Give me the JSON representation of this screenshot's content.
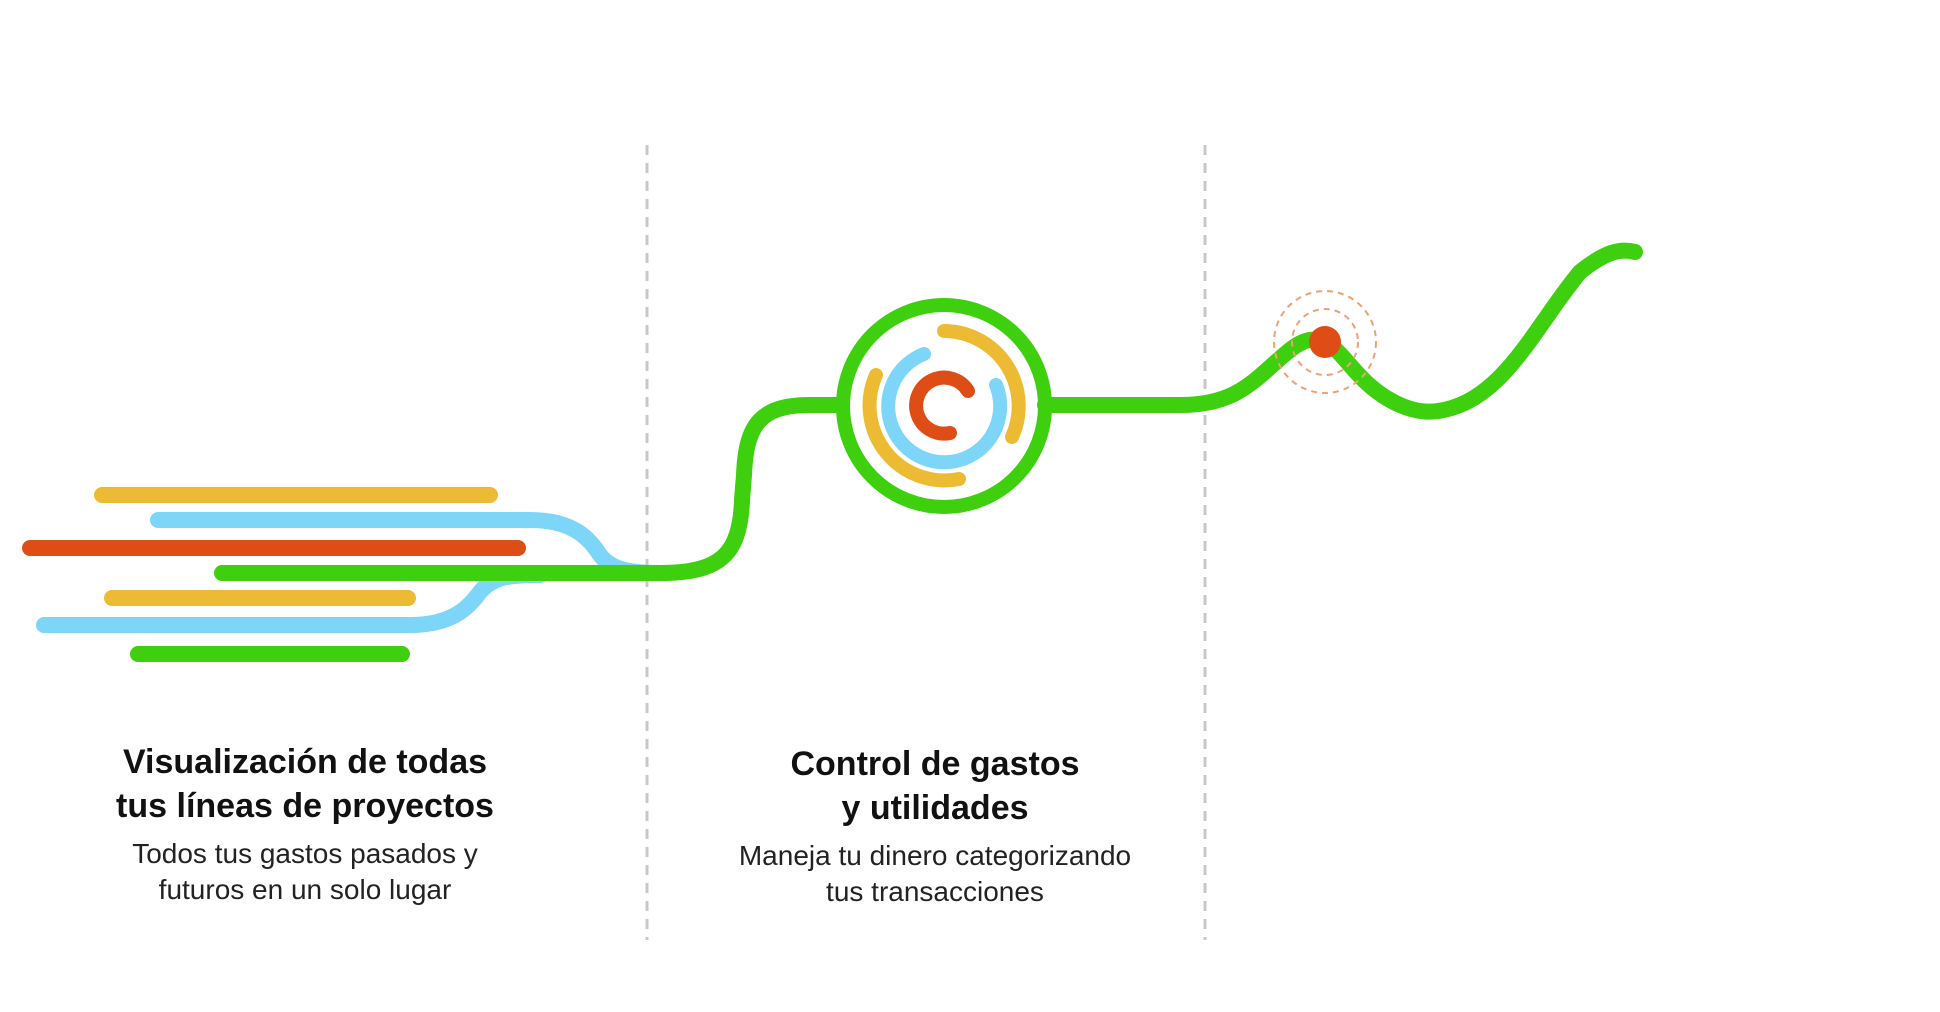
{
  "colors": {
    "green": "#3ecf0e",
    "yellow": "#ecbb33",
    "blue": "#7dd6f7",
    "red": "#df4d16",
    "divider": "#c8c8c8",
    "pulse_ring": "#f0a078"
  },
  "icons": {
    "hub": "concentric-arcs-icon",
    "marker": "pulse-dot-icon"
  },
  "sections": [
    {
      "title_lines": [
        "Visualización de todas",
        "tus líneas de proyectos"
      ],
      "desc_lines": [
        "Todos tus gastos pasados y",
        "futuros en un solo lugar"
      ]
    },
    {
      "title_lines": [
        "Control de gastos",
        "y utilidades"
      ],
      "desc_lines": [
        "Maneja tu dinero categorizando",
        "tus transacciones"
      ]
    }
  ]
}
